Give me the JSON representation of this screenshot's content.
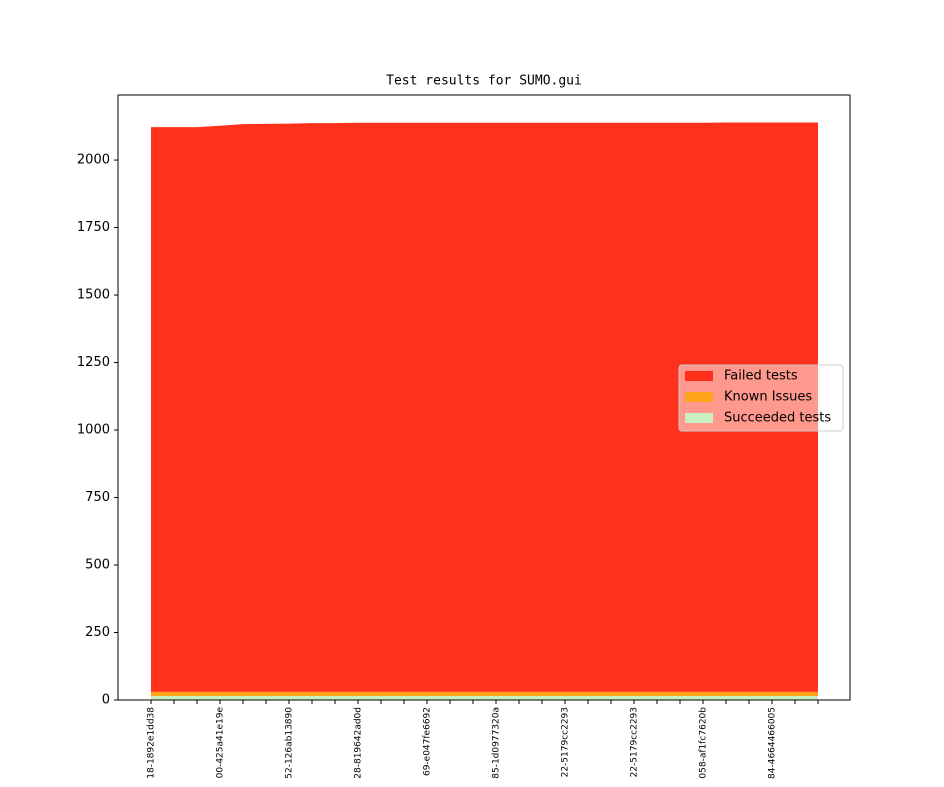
{
  "chart_data": {
    "type": "stacked-area",
    "title": "Test results for SUMO.gui",
    "categories": [
      "18-1892e1dd38",
      null,
      null,
      "00-425a41e19e",
      null,
      null,
      "52-126ab13890",
      null,
      null,
      "28-819642ad0d",
      null,
      null,
      "69-e047fe6692",
      null,
      null,
      "85-1d0977320a",
      null,
      null,
      "22-5179cc2293",
      null,
      null,
      "22-5179cc2293",
      null,
      null,
      "058-af1fc7620b",
      null,
      null,
      "84-4664466005",
      null,
      null
    ],
    "series": [
      {
        "name": "Succeeded tests",
        "color": "#c9efc0",
        "values": [
          15,
          15,
          15,
          15,
          15,
          15,
          15,
          15,
          15,
          15,
          15,
          15,
          15,
          15,
          15,
          15,
          15,
          15,
          15,
          15,
          15,
          15,
          15,
          15,
          15,
          15,
          15,
          15,
          15,
          15
        ]
      },
      {
        "name": "Known Issues",
        "color": "#ffa41a",
        "values": [
          15,
          15,
          15,
          15,
          15,
          15,
          15,
          15,
          15,
          15,
          15,
          15,
          15,
          15,
          15,
          15,
          15,
          15,
          15,
          15,
          15,
          15,
          15,
          15,
          15,
          15,
          15,
          15,
          15,
          15
        ]
      },
      {
        "name": "Failed tests",
        "color": "#ff311a",
        "values": [
          2092,
          2092,
          2092,
          2097,
          2103,
          2104,
          2105,
          2107,
          2107,
          2108,
          2108,
          2108,
          2108,
          2108,
          2108,
          2108,
          2108,
          2108,
          2108,
          2108,
          2108,
          2108,
          2108,
          2108,
          2108,
          2109,
          2109,
          2109,
          2109,
          2109
        ]
      }
    ],
    "ylim": [
      0,
      2241
    ],
    "yticks": [
      0,
      250,
      500,
      750,
      1000,
      1250,
      1500,
      1750,
      2000
    ],
    "legend": "center right"
  }
}
